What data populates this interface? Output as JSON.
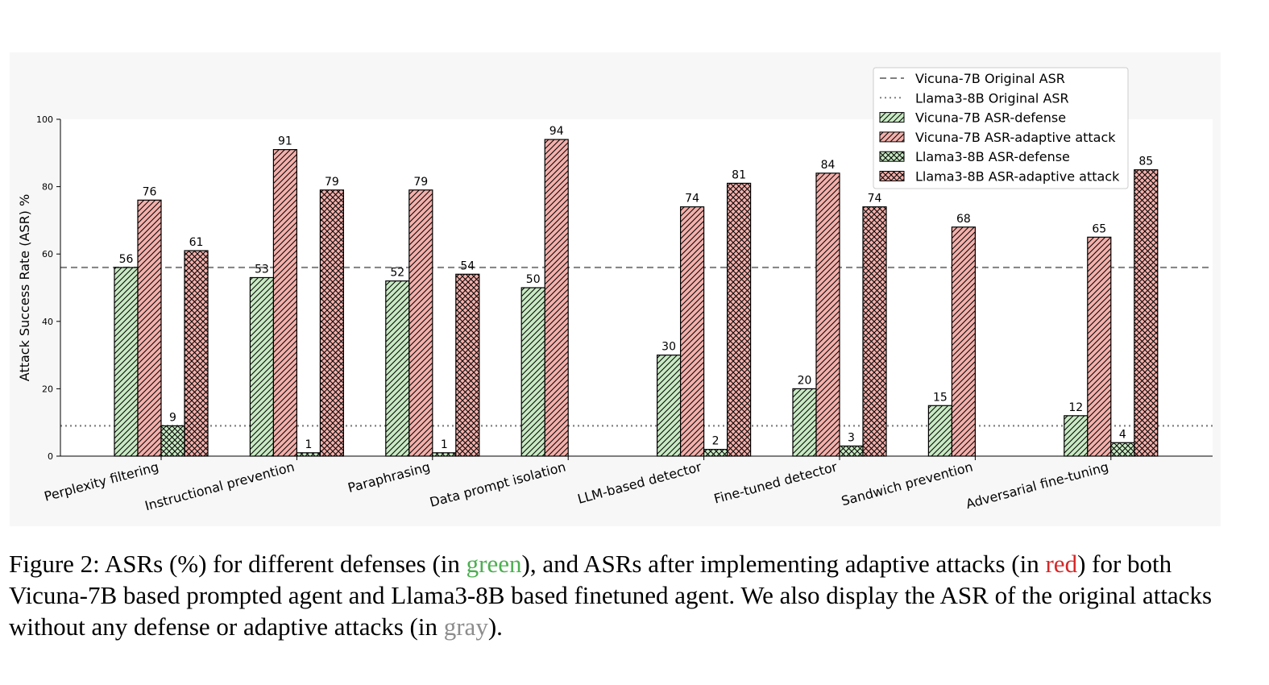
{
  "chart_data": {
    "type": "bar",
    "ylabel": "Attack Success Rate (ASR) %",
    "ylim": [
      0,
      100
    ],
    "yticks": [
      0,
      20,
      40,
      60,
      80,
      100
    ],
    "categories": [
      "Perplexity filtering",
      "Instructional prevention",
      "Paraphrasing",
      "Data prompt isolation",
      "LLM-based detector",
      "Fine-tuned detector",
      "Sandwich prevention",
      "Adversarial fine-tuning"
    ],
    "series": [
      {
        "name": "Vicuna-7B ASR-defense",
        "values": [
          56,
          53,
          52,
          50,
          30,
          20,
          15,
          12
        ],
        "color": "#c8eac3",
        "hatch": "diagonal"
      },
      {
        "name": "Vicuna-7B ASR-adaptive attack",
        "values": [
          76,
          91,
          79,
          94,
          74,
          84,
          68,
          65
        ],
        "color": "#f4b0ab",
        "hatch": "diagonal"
      },
      {
        "name": "Llama3-8B ASR-defense",
        "values": [
          9,
          1,
          1,
          null,
          2,
          3,
          null,
          4
        ],
        "color": "#c8eac3",
        "hatch": "cross"
      },
      {
        "name": "Llama3-8B ASR-adaptive attack",
        "values": [
          61,
          79,
          54,
          null,
          81,
          74,
          null,
          85
        ],
        "color": "#f4b0ab",
        "hatch": "cross"
      }
    ],
    "reference_lines": [
      {
        "name": "Vicuna-7B Original ASR",
        "value": 56,
        "style": "dashed",
        "color": "#808080"
      },
      {
        "name": "Llama3-8B Original ASR",
        "value": 9,
        "style": "dotted",
        "color": "#808080"
      }
    ],
    "legend_position": "top-right"
  },
  "caption": {
    "prefix": "Figure 2: ASRs (%) for different defenses (in ",
    "green_word": "green",
    "middle": "), and ASRs after implementing adaptive attacks (in ",
    "red_word": "red",
    "middle2": ") for both Vicuna-7B based prompted agent and Llama3-8B based finetuned agent. We also display the ASR of the original attacks without any defense or adaptive attacks (in ",
    "gray_word": "gray",
    "suffix": ")."
  }
}
